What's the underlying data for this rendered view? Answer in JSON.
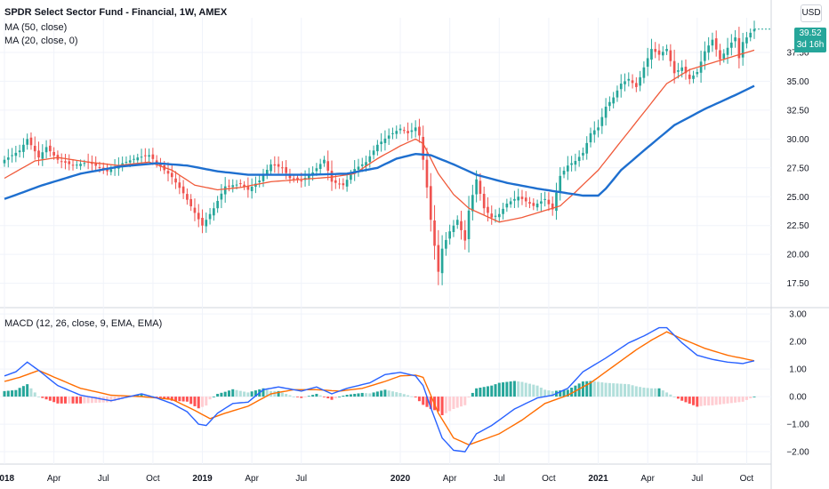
{
  "header": {
    "title": "SPDR Select Sector Fund - Financial, 1W, AMEX",
    "ma50": "MA (50, close)",
    "ma20": "MA (20, close, 0)",
    "macd": "MACD (12, 26, close, 9, EMA, EMA)",
    "currency": "USD"
  },
  "last_price": {
    "value": "39.52",
    "countdown": "3d 16h"
  },
  "colors": {
    "up": "#26a69a",
    "down": "#ef5350",
    "ma50": "#1e6fcf",
    "ma20": "#f05a3a",
    "macd_line": "#2962ff",
    "signal_line": "#ff6d00",
    "hist_up_strong": "#26a69a",
    "hist_up_weak": "#b2dfdb",
    "hist_down_strong": "#ff5252",
    "hist_down_weak": "#ffcdd2"
  },
  "chart_data": [
    {
      "type": "candlestick",
      "title": "SPDR Select Sector Fund - Financial, 1W, AMEX",
      "y_ticks": [
        "17.50",
        "20.00",
        "22.50",
        "25.00",
        "27.50",
        "30.00",
        "32.50",
        "35.00",
        "37.50"
      ],
      "ylim": [
        15.7,
        40.5
      ],
      "x_ticks": [
        "2018",
        "Apr",
        "Jul",
        "Oct",
        "2019",
        "Apr",
        "Jul",
        "2020",
        "Apr",
        "Jul",
        "Oct",
        "2021",
        "Apr",
        "Jul",
        "Oct"
      ],
      "x_tick_weeks": [
        0,
        13,
        26,
        39,
        52,
        65,
        78,
        104,
        117,
        130,
        143,
        156,
        169,
        182,
        195
      ],
      "close_anchors": [
        [
          0,
          28.2
        ],
        [
          4,
          29.0
        ],
        [
          6,
          30.0
        ],
        [
          9,
          28.4
        ],
        [
          11,
          29.3
        ],
        [
          14,
          28.2
        ],
        [
          18,
          27.7
        ],
        [
          22,
          28.0
        ],
        [
          27,
          27.2
        ],
        [
          31,
          27.9
        ],
        [
          35,
          28.4
        ],
        [
          38,
          28.6
        ],
        [
          41,
          27.6
        ],
        [
          44,
          26.7
        ],
        [
          47,
          25.3
        ],
        [
          50,
          23.6
        ],
        [
          52,
          22.5
        ],
        [
          55,
          24.0
        ],
        [
          58,
          25.9
        ],
        [
          62,
          26.1
        ],
        [
          64,
          25.6
        ],
        [
          67,
          26.4
        ],
        [
          70,
          27.8
        ],
        [
          73,
          27.5
        ],
        [
          75,
          26.6
        ],
        [
          78,
          26.4
        ],
        [
          81,
          27.1
        ],
        [
          84,
          28.2
        ],
        [
          86,
          26.3
        ],
        [
          89,
          26.0
        ],
        [
          92,
          27.4
        ],
        [
          95,
          28.0
        ],
        [
          98,
          29.5
        ],
        [
          101,
          30.3
        ],
        [
          104,
          30.9
        ],
        [
          106,
          30.5
        ],
        [
          108,
          31.0
        ],
        [
          109,
          30.3
        ],
        [
          110,
          28.2
        ],
        [
          111,
          25.8
        ],
        [
          112,
          23.0
        ],
        [
          114,
          18.5
        ],
        [
          115,
          20.5
        ],
        [
          117,
          22.0
        ],
        [
          119,
          23.0
        ],
        [
          121,
          21.2
        ],
        [
          122,
          23.8
        ],
        [
          124,
          26.5
        ],
        [
          126,
          24.0
        ],
        [
          128,
          23.2
        ],
        [
          130,
          23.5
        ],
        [
          132,
          24.4
        ],
        [
          135,
          25.0
        ],
        [
          137,
          24.6
        ],
        [
          139,
          24.2
        ],
        [
          142,
          24.8
        ],
        [
          144,
          23.9
        ],
        [
          146,
          26.8
        ],
        [
          148,
          27.7
        ],
        [
          150,
          28.1
        ],
        [
          152,
          28.8
        ],
        [
          154,
          30.5
        ],
        [
          156,
          31.0
        ],
        [
          158,
          32.8
        ],
        [
          160,
          33.6
        ],
        [
          162,
          34.8
        ],
        [
          164,
          35.2
        ],
        [
          166,
          34.5
        ],
        [
          168,
          36.2
        ],
        [
          170,
          37.8
        ],
        [
          172,
          37.3
        ],
        [
          174,
          37.8
        ],
        [
          176,
          35.7
        ],
        [
          178,
          36.2
        ],
        [
          180,
          35.2
        ],
        [
          182,
          35.8
        ],
        [
          184,
          37.6
        ],
        [
          186,
          38.6
        ],
        [
          188,
          36.9
        ],
        [
          190,
          37.9
        ],
        [
          192,
          38.8
        ],
        [
          193,
          37.0
        ],
        [
          194,
          38.4
        ],
        [
          196,
          39.2
        ],
        [
          197,
          39.52
        ]
      ],
      "series": [
        {
          "name": "MA (50, close)",
          "anchors": [
            [
              0,
              24.8
            ],
            [
              10,
              26.0
            ],
            [
              20,
              27.0
            ],
            [
              30,
              27.6
            ],
            [
              40,
              27.9
            ],
            [
              48,
              27.7
            ],
            [
              56,
              27.2
            ],
            [
              64,
              26.9
            ],
            [
              72,
              26.9
            ],
            [
              80,
              26.9
            ],
            [
              90,
              27.0
            ],
            [
              98,
              27.5
            ],
            [
              103,
              28.3
            ],
            [
              108,
              28.7
            ],
            [
              112,
              28.6
            ],
            [
              118,
              27.8
            ],
            [
              124,
              26.9
            ],
            [
              132,
              26.2
            ],
            [
              140,
              25.7
            ],
            [
              148,
              25.3
            ],
            [
              152,
              25.1
            ],
            [
              156,
              25.1
            ],
            [
              158,
              25.7
            ],
            [
              162,
              27.3
            ],
            [
              168,
              29.0
            ],
            [
              176,
              31.2
            ],
            [
              184,
              32.6
            ],
            [
              192,
              33.8
            ],
            [
              197,
              34.6
            ]
          ]
        },
        {
          "name": "MA (20, close, 0)",
          "anchors": [
            [
              0,
              26.6
            ],
            [
              8,
              28.1
            ],
            [
              14,
              28.4
            ],
            [
              22,
              28.0
            ],
            [
              30,
              27.7
            ],
            [
              38,
              28.0
            ],
            [
              44,
              27.3
            ],
            [
              50,
              26.0
            ],
            [
              56,
              25.6
            ],
            [
              62,
              25.8
            ],
            [
              70,
              26.3
            ],
            [
              78,
              26.5
            ],
            [
              86,
              26.7
            ],
            [
              92,
              27.0
            ],
            [
              98,
              28.3
            ],
            [
              104,
              29.4
            ],
            [
              108,
              30.0
            ],
            [
              110,
              29.6
            ],
            [
              114,
              27.0
            ],
            [
              118,
              25.2
            ],
            [
              122,
              24.0
            ],
            [
              126,
              23.4
            ],
            [
              130,
              22.8
            ],
            [
              136,
              23.2
            ],
            [
              142,
              23.8
            ],
            [
              146,
              24.2
            ],
            [
              150,
              25.4
            ],
            [
              156,
              27.3
            ],
            [
              162,
              29.8
            ],
            [
              168,
              32.3
            ],
            [
              174,
              34.8
            ],
            [
              180,
              36.0
            ],
            [
              186,
              36.6
            ],
            [
              192,
              37.2
            ],
            [
              197,
              37.7
            ]
          ]
        }
      ],
      "last_value": 39.52
    },
    {
      "type": "macd",
      "title": "MACD (12, 26, close, 9, EMA, EMA)",
      "y_ticks": [
        "3.00",
        "2.00",
        "1.00",
        "0.00",
        "−1.00",
        "−2.00"
      ],
      "ylim": [
        -2.45,
        3.1
      ],
      "series": [
        {
          "name": "MACD",
          "anchors": [
            [
              0,
              0.75
            ],
            [
              3,
              0.9
            ],
            [
              6,
              1.25
            ],
            [
              9,
              0.95
            ],
            [
              14,
              0.4
            ],
            [
              20,
              0.05
            ],
            [
              28,
              -0.15
            ],
            [
              36,
              0.1
            ],
            [
              40,
              -0.05
            ],
            [
              44,
              -0.25
            ],
            [
              48,
              -0.55
            ],
            [
              51,
              -1.0
            ],
            [
              53,
              -1.05
            ],
            [
              56,
              -0.6
            ],
            [
              60,
              -0.25
            ],
            [
              64,
              -0.2
            ],
            [
              68,
              0.25
            ],
            [
              72,
              0.35
            ],
            [
              78,
              0.2
            ],
            [
              82,
              0.35
            ],
            [
              86,
              0.1
            ],
            [
              90,
              0.3
            ],
            [
              96,
              0.5
            ],
            [
              100,
              0.8
            ],
            [
              104,
              0.88
            ],
            [
              108,
              0.75
            ],
            [
              110,
              0.4
            ],
            [
              112,
              -0.4
            ],
            [
              115,
              -1.5
            ],
            [
              118,
              -1.95
            ],
            [
              121,
              -2.0
            ],
            [
              124,
              -1.35
            ],
            [
              128,
              -1.05
            ],
            [
              134,
              -0.45
            ],
            [
              140,
              -0.05
            ],
            [
              144,
              0.05
            ],
            [
              148,
              0.3
            ],
            [
              152,
              0.9
            ],
            [
              158,
              1.4
            ],
            [
              164,
              1.95
            ],
            [
              168,
              2.2
            ],
            [
              172,
              2.5
            ],
            [
              174,
              2.5
            ],
            [
              178,
              1.95
            ],
            [
              182,
              1.5
            ],
            [
              186,
              1.35
            ],
            [
              190,
              1.25
            ],
            [
              194,
              1.2
            ],
            [
              197,
              1.3
            ]
          ]
        },
        {
          "name": "Signal",
          "anchors": [
            [
              0,
              0.55
            ],
            [
              4,
              0.7
            ],
            [
              9,
              0.95
            ],
            [
              14,
              0.65
            ],
            [
              20,
              0.3
            ],
            [
              28,
              0.05
            ],
            [
              36,
              0.0
            ],
            [
              44,
              -0.1
            ],
            [
              50,
              -0.5
            ],
            [
              54,
              -0.8
            ],
            [
              58,
              -0.6
            ],
            [
              64,
              -0.35
            ],
            [
              70,
              0.1
            ],
            [
              76,
              0.25
            ],
            [
              82,
              0.25
            ],
            [
              88,
              0.2
            ],
            [
              94,
              0.3
            ],
            [
              100,
              0.55
            ],
            [
              104,
              0.75
            ],
            [
              108,
              0.78
            ],
            [
              110,
              0.7
            ],
            [
              114,
              -0.6
            ],
            [
              118,
              -1.5
            ],
            [
              122,
              -1.75
            ],
            [
              126,
              -1.55
            ],
            [
              130,
              -1.35
            ],
            [
              136,
              -0.85
            ],
            [
              142,
              -0.25
            ],
            [
              148,
              0.05
            ],
            [
              154,
              0.5
            ],
            [
              160,
              1.1
            ],
            [
              166,
              1.7
            ],
            [
              170,
              2.05
            ],
            [
              174,
              2.35
            ],
            [
              178,
              2.1
            ],
            [
              184,
              1.75
            ],
            [
              190,
              1.5
            ],
            [
              197,
              1.3
            ]
          ]
        }
      ]
    }
  ]
}
